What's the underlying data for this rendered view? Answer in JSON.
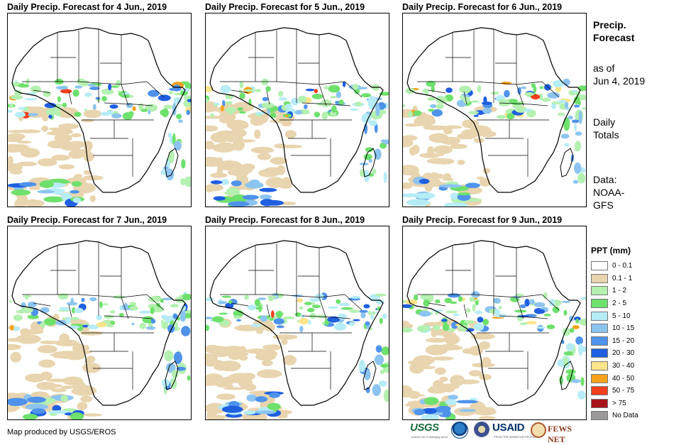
{
  "panels": [
    {
      "title": "Daily Precip. Forecast for 4 Jun., 2019"
    },
    {
      "title": "Daily Precip. Forecast for 5 Jun., 2019"
    },
    {
      "title": "Daily Precip. Forecast for 6 Jun., 2019"
    },
    {
      "title": "Daily Precip. Forecast for 7 Jun., 2019"
    },
    {
      "title": "Daily Precip. Forecast for 8 Jun., 2019"
    },
    {
      "title": "Daily Precip. Forecast for 9 Jun., 2019"
    }
  ],
  "sidebar": {
    "title_line1": "Precip.",
    "title_line2": "Forecast",
    "asof_line1": "as of",
    "asof_line2": "Jun 4, 2019",
    "totals_line1": "Daily",
    "totals_line2": "Totals",
    "source_line1": "Data:",
    "source_line2": "NOAA-",
    "source_line3": "GFS"
  },
  "legend": {
    "title": "PPT (mm)",
    "items": [
      {
        "label": "0 - 0.1",
        "color": "#ffffff"
      },
      {
        "label": "0.1 - 1",
        "color": "#e8d4ae"
      },
      {
        "label": "1 - 2",
        "color": "#b4f0b0"
      },
      {
        "label": "2 - 5",
        "color": "#6ee06c"
      },
      {
        "label": "5 - 10",
        "color": "#b6ecf6"
      },
      {
        "label": "10 - 15",
        "color": "#8cc4f0"
      },
      {
        "label": "15 - 20",
        "color": "#4e92ea"
      },
      {
        "label": "20 - 30",
        "color": "#1f5fe0"
      },
      {
        "label": "30 - 40",
        "color": "#fde48a"
      },
      {
        "label": "40 - 50",
        "color": "#f7a21c"
      },
      {
        "label": "50 - 75",
        "color": "#f0401c"
      },
      {
        "label": "> 75",
        "color": "#a8141c"
      },
      {
        "label": "No Data",
        "color": "#999999"
      }
    ]
  },
  "credit": "Map produced by USGS/EROS",
  "logos": [
    {
      "name": "USGS",
      "tagline": "science for a changing world"
    },
    {
      "name": "NOAA"
    },
    {
      "name": "USAID",
      "tagline": "FROM THE AMERICAN PEOPLE"
    },
    {
      "name": "FEWS NET"
    }
  ]
}
